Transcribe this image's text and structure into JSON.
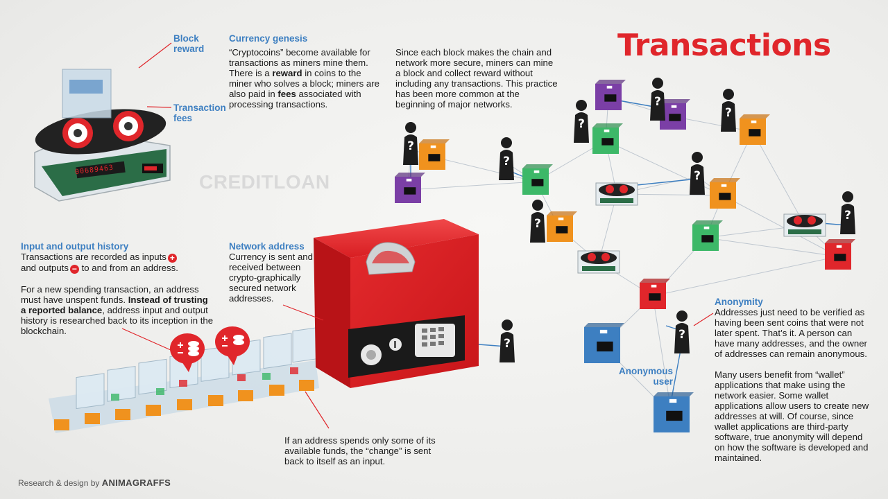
{
  "title": "Transactions",
  "watermark": "CREDITLOAN",
  "credit": {
    "prefix": "Research & design by",
    "brand": "ANIMAGRAFFS"
  },
  "miner": {
    "block_reward": "Block\nreward",
    "transaction_fees": "Transaction\nfees",
    "display": "00689463"
  },
  "currency_genesis": {
    "heading": "Currency genesis",
    "t1": "“Cryptocoins” become available for transactions as miners mine them. There is a ",
    "b1": "reward",
    "t2": " in coins to the miner who solves a block; miners are also paid in ",
    "b2": "fees",
    "t3": " associated with processing transactions."
  },
  "secure_note": "Since each block makes the chain and network more secure, miners can mine a block and collect reward without including any transactions. This practice has been more common at the beginning of major networks.",
  "io_history": {
    "heading": "Input and output history",
    "t1": "Transactions are recorded as inputs",
    "plus": "+",
    "t2": "and outputs",
    "minus": "−",
    "t3": " to and from an address.",
    "p2a": "For a new spending transaction, an address must have unspent funds. ",
    "p2b": "Instead of trusting a reported balance",
    "p2c": ", address input and output history is researched back to its inception in the blockchain."
  },
  "network_address": {
    "heading": "Network address",
    "body": "Currency is sent and received between crypto-graphically secured network addresses."
  },
  "change_note": "If an address spends only some of its available funds, the “change” is sent back to itself as an input.",
  "anonymity": {
    "heading": "Anonymity",
    "p1": "Addresses just need to be verified as having been sent coins that were not later spent. That’s it. A person can have many addresses, and the owner of addresses can remain anonymous.",
    "p2": "Many users benefit from “wallet” applications that make using the network easier. Some wallet applications allow users to create new addresses at will. Of course, since wallet applications are third-party software, true anonymity will depend on how the software is developed and maintained."
  },
  "anonymous_user": "Anonymous\nuser",
  "unknown_mark": "?",
  "colors": {
    "red": "#e0262b",
    "blue": "#3d7fc1",
    "green": "#3db868",
    "orange": "#f0921e",
    "purple": "#7b3fa6"
  }
}
